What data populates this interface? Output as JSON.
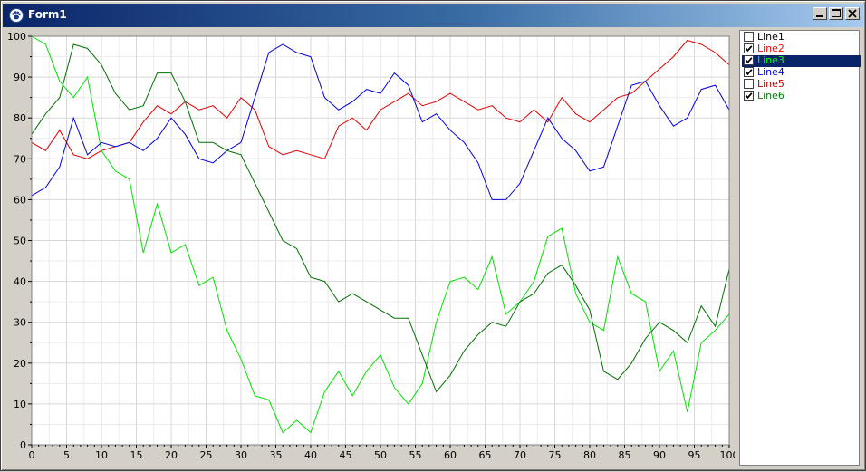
{
  "window": {
    "title": "Form1",
    "icon": "paw-icon",
    "buttons": [
      "minimize-icon",
      "maximize-icon",
      "close-icon"
    ]
  },
  "legend": {
    "items": [
      {
        "label": "Line1",
        "checked": false,
        "color": "#000000",
        "selected": false
      },
      {
        "label": "Line2",
        "checked": true,
        "color": "#ff0000",
        "selected": false
      },
      {
        "label": "Line3",
        "checked": true,
        "color": "#00ff00",
        "selected": true
      },
      {
        "label": "Line4",
        "checked": true,
        "color": "#0000ff",
        "selected": false
      },
      {
        "label": "Line5",
        "checked": false,
        "color": "#c00000",
        "selected": false
      },
      {
        "label": "Line6",
        "checked": true,
        "color": "#008000",
        "selected": false
      }
    ]
  },
  "chart_data": {
    "type": "line",
    "title": "",
    "xlabel": "",
    "ylabel": "",
    "xlim": [
      0,
      100
    ],
    "ylim": [
      0,
      100
    ],
    "xticks": [
      0,
      5,
      10,
      15,
      20,
      25,
      30,
      35,
      40,
      45,
      50,
      55,
      60,
      65,
      70,
      75,
      80,
      85,
      90,
      95,
      100
    ],
    "yticks": [
      0,
      10,
      20,
      30,
      40,
      50,
      60,
      70,
      80,
      90,
      100
    ],
    "grid": true,
    "legend_position": "right",
    "series": [
      {
        "name": "Line2",
        "color": "#e00000",
        "x": [
          0,
          2,
          4,
          6,
          8,
          10,
          12,
          14,
          16,
          18,
          20,
          22,
          24,
          26,
          28,
          30,
          32,
          34,
          36,
          38,
          40,
          42,
          44,
          46,
          48,
          50,
          52,
          54,
          56,
          58,
          60,
          62,
          64,
          66,
          68,
          70,
          72,
          74,
          76,
          78,
          80,
          82,
          84,
          86,
          88,
          90,
          92,
          94,
          96,
          98,
          100
        ],
        "y": [
          74,
          72,
          77,
          71,
          70,
          72,
          73,
          74,
          79,
          83,
          81,
          84,
          82,
          83,
          80,
          85,
          82,
          73,
          71,
          72,
          71,
          70,
          78,
          80,
          77,
          82,
          84,
          86,
          83,
          84,
          86,
          84,
          82,
          83,
          80,
          79,
          82,
          79,
          85,
          81,
          79,
          82,
          85,
          86,
          89,
          92,
          95,
          99,
          98,
          96,
          93
        ]
      },
      {
        "name": "Line3",
        "color": "#00e000",
        "x": [
          0,
          2,
          4,
          6,
          8,
          10,
          12,
          14,
          16,
          18,
          20,
          22,
          24,
          26,
          28,
          30,
          32,
          34,
          36,
          38,
          40,
          42,
          44,
          46,
          48,
          50,
          52,
          54,
          56,
          58,
          60,
          62,
          64,
          66,
          68,
          70,
          72,
          74,
          76,
          78,
          80,
          82,
          84,
          86,
          88,
          90,
          92,
          94,
          96,
          98,
          100
        ],
        "y": [
          100,
          98,
          89,
          85,
          90,
          72,
          67,
          65,
          47,
          59,
          47,
          49,
          39,
          41,
          28,
          21,
          12,
          11,
          3,
          6,
          3,
          13,
          18,
          12,
          18,
          22,
          14,
          10,
          15,
          30,
          40,
          41,
          38,
          46,
          32,
          35,
          40,
          51,
          53,
          37,
          30,
          28,
          46,
          37,
          35,
          18,
          23,
          8,
          25,
          28,
          32
        ]
      },
      {
        "name": "Line4",
        "color": "#0000e0",
        "x": [
          0,
          2,
          4,
          6,
          8,
          10,
          12,
          14,
          16,
          18,
          20,
          22,
          24,
          26,
          28,
          30,
          32,
          34,
          36,
          38,
          40,
          42,
          44,
          46,
          48,
          50,
          52,
          54,
          56,
          58,
          60,
          62,
          64,
          66,
          68,
          70,
          72,
          74,
          76,
          78,
          80,
          82,
          84,
          86,
          88,
          90,
          92,
          94,
          96,
          98,
          100
        ],
        "y": [
          61,
          63,
          68,
          80,
          71,
          74,
          73,
          74,
          72,
          75,
          80,
          76,
          70,
          69,
          72,
          74,
          85,
          96,
          98,
          96,
          95,
          85,
          82,
          84,
          87,
          86,
          91,
          88,
          79,
          81,
          77,
          74,
          69,
          60,
          60,
          64,
          72,
          80,
          75,
          72,
          67,
          68,
          78,
          88,
          89,
          83,
          78,
          80,
          87,
          88,
          82
        ]
      },
      {
        "name": "Line6",
        "color": "#007000",
        "x": [
          0,
          2,
          4,
          6,
          8,
          10,
          12,
          14,
          16,
          18,
          20,
          22,
          24,
          26,
          28,
          30,
          32,
          34,
          36,
          38,
          40,
          42,
          44,
          46,
          48,
          50,
          52,
          54,
          56,
          58,
          60,
          62,
          64,
          66,
          68,
          70,
          72,
          74,
          76,
          78,
          80,
          82,
          84,
          86,
          88,
          90,
          92,
          94,
          96,
          98,
          100
        ],
        "y": [
          76,
          81,
          85,
          98,
          97,
          93,
          86,
          82,
          83,
          91,
          91,
          84,
          74,
          74,
          72,
          71,
          64,
          57,
          50,
          48,
          41,
          40,
          35,
          37,
          35,
          33,
          31,
          31,
          22,
          13,
          17,
          23,
          27,
          30,
          29,
          35,
          37,
          42,
          44,
          39,
          33,
          18,
          16,
          20,
          26,
          30,
          28,
          25,
          34,
          29,
          43
        ]
      }
    ]
  }
}
